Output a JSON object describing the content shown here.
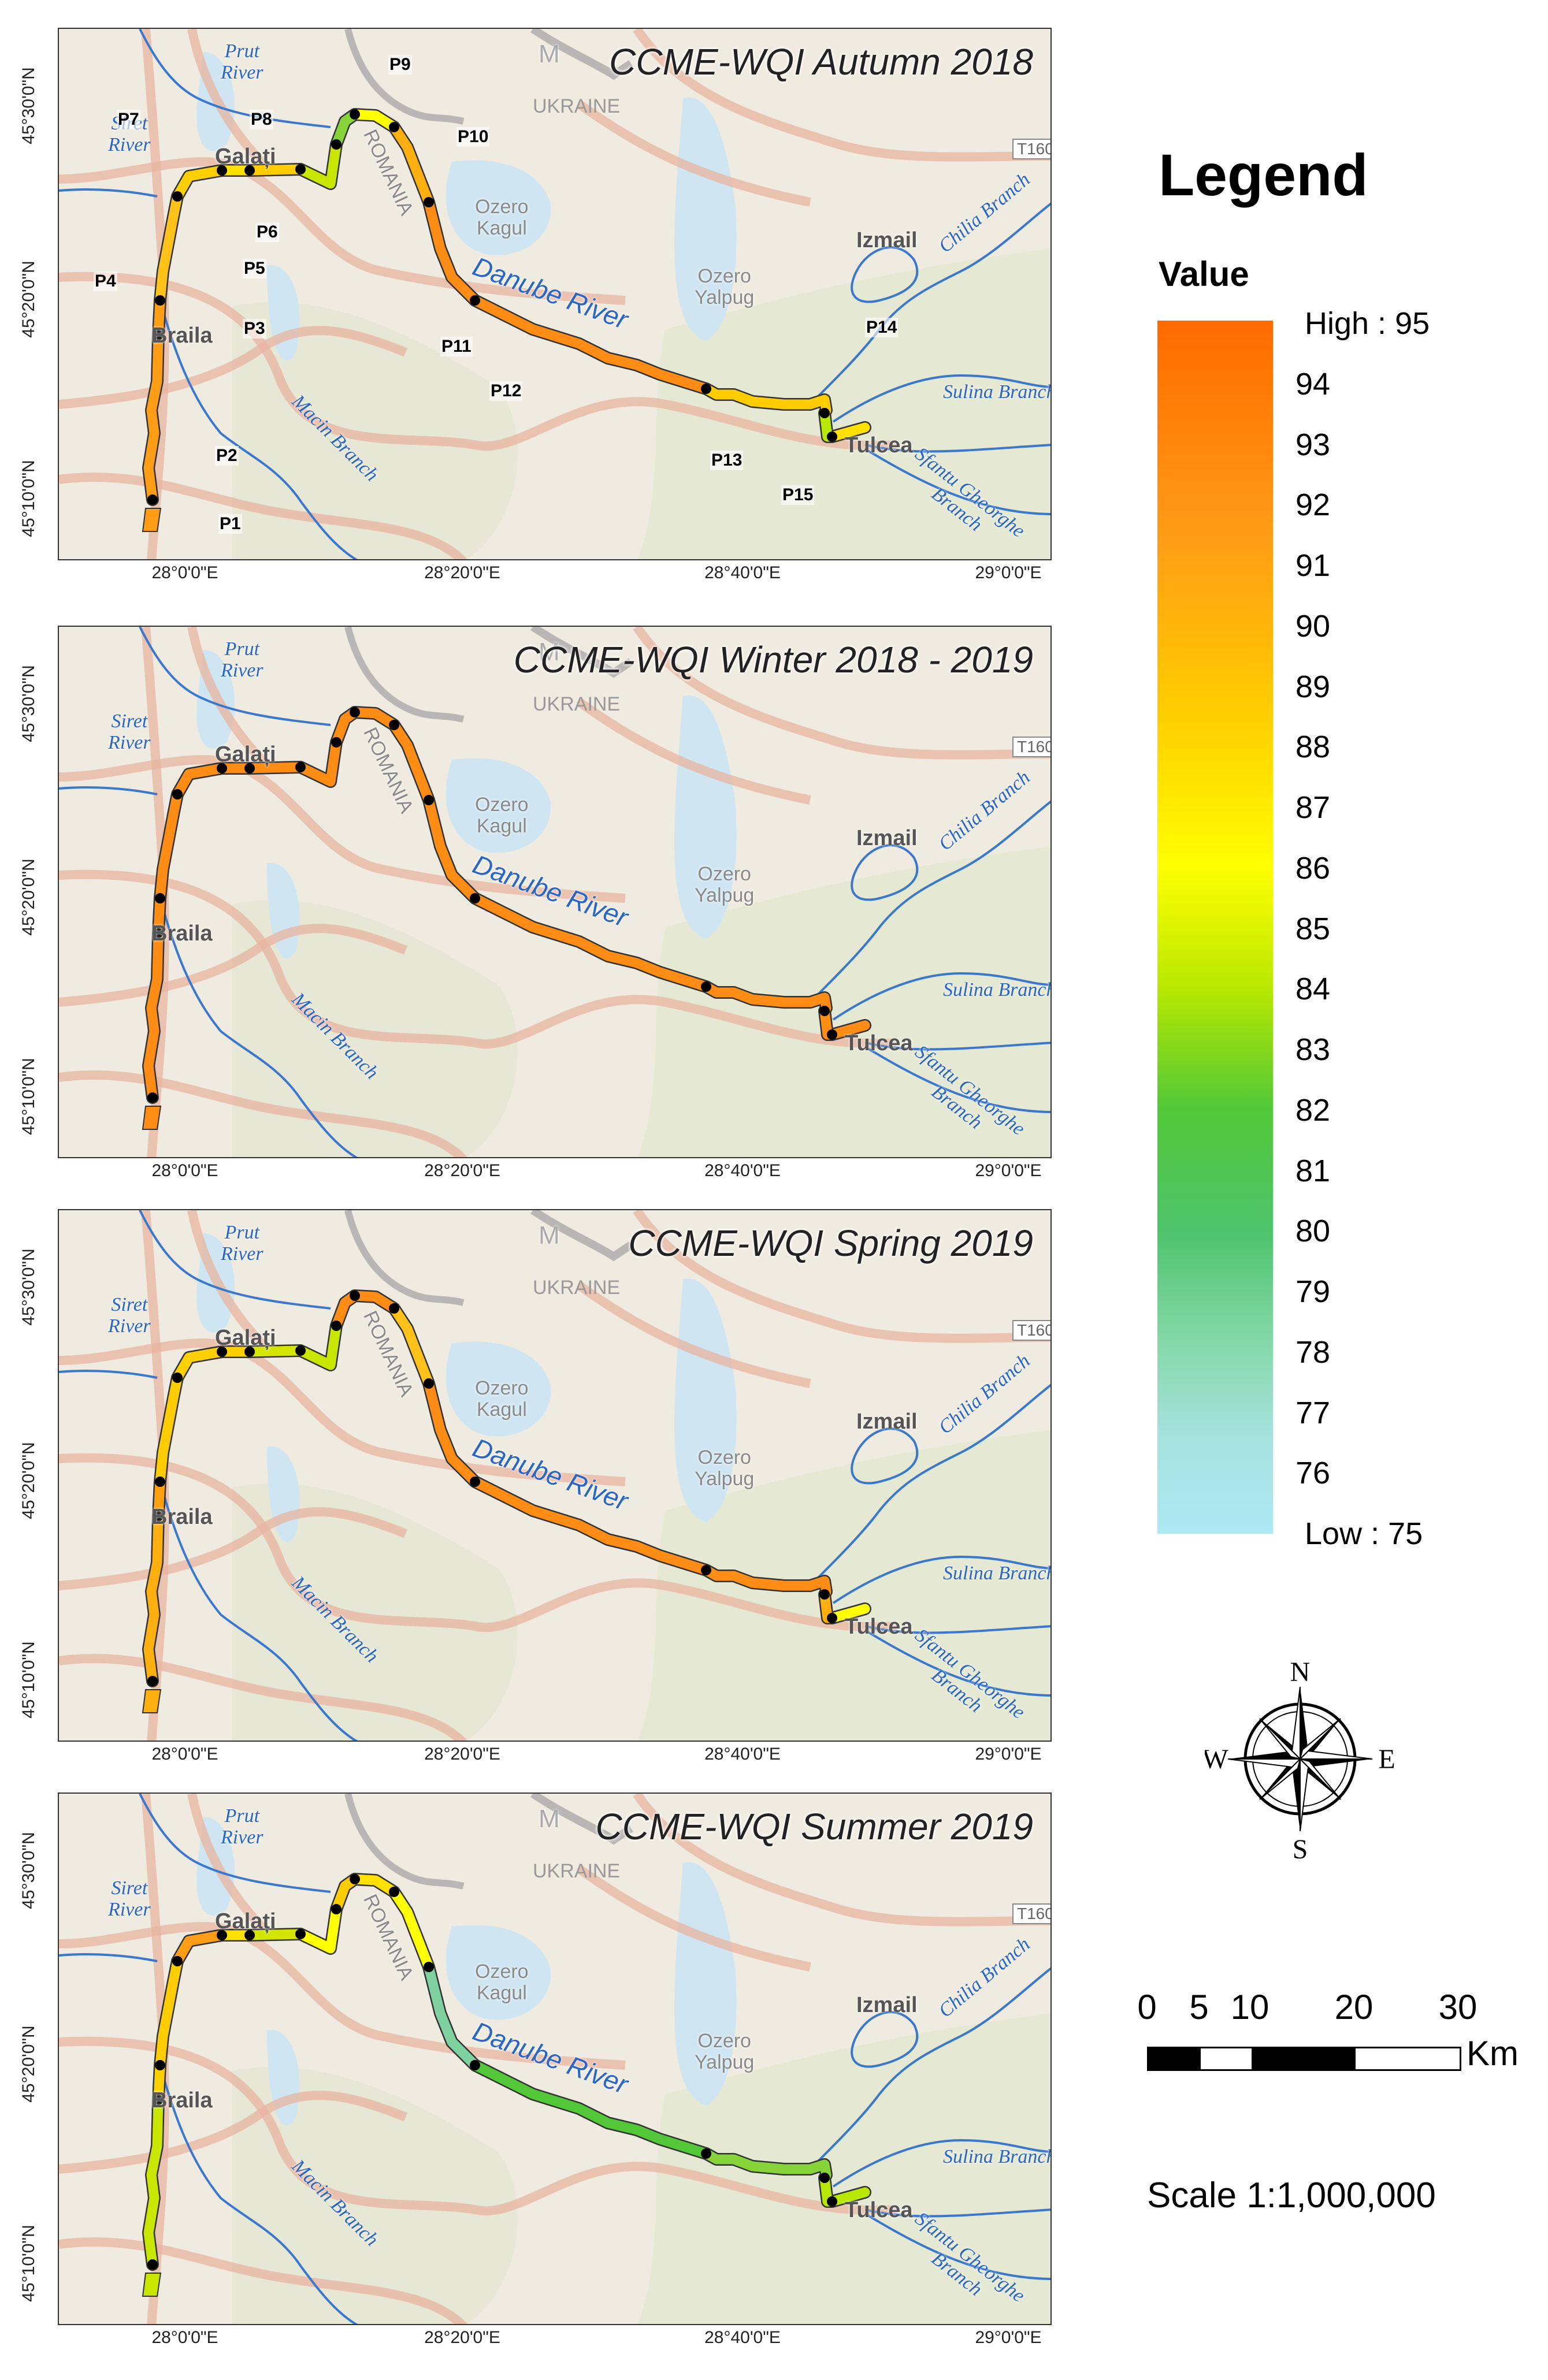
{
  "panels": [
    {
      "title": "CCME-WQI Autumn 2018",
      "colors": [
        "#ff9d16",
        "#ff9d16",
        "#ffc21a",
        "#ffd000",
        "#ffe000",
        "#ffcc00",
        "#c8e600",
        "#86d33a",
        "#ffff00",
        "#ffb010",
        "#ff8c14",
        "#ff8c14",
        "#ffcc00",
        "#b9e800",
        "#ffe000"
      ],
      "show_points": true
    },
    {
      "title": "CCME-WQI Winter 2018 - 2019",
      "colors": [
        "#ff8c14",
        "#ff8c14",
        "#ff8c14",
        "#ff8c14",
        "#ff8c14",
        "#ff8c14",
        "#ff8c14",
        "#ff8c14",
        "#ff8c14",
        "#ff8c14",
        "#ff8c14",
        "#ff8c14",
        "#ff8c14",
        "#ff8c14",
        "#ff8c14"
      ],
      "show_points": false
    },
    {
      "title": "CCME-WQI Spring 2019",
      "colors": [
        "#ffb010",
        "#ffa010",
        "#ffcc00",
        "#ffd000",
        "#ffd000",
        "#d4e600",
        "#c8e600",
        "#ff8c14",
        "#ff8c14",
        "#ffc21a",
        "#ff8c14",
        "#ff8c14",
        "#ff8c14",
        "#ffb010",
        "#ffff00"
      ],
      "show_points": false
    },
    {
      "title": "CCME-WQI Summer 2019",
      "colors": [
        "#c8e600",
        "#ffd000",
        "#ffcc00",
        "#ff9d16",
        "#ffe000",
        "#d4e600",
        "#ffff00",
        "#ffcc00",
        "#ffe000",
        "#ffff00",
        "#7fd1a0",
        "#52c838",
        "#86d33a",
        "#b9e800",
        "#b9e800"
      ],
      "show_points": false
    }
  ],
  "sampling_points": [
    "P1",
    "P2",
    "P3",
    "P4",
    "P5",
    "P6",
    "P7",
    "P8",
    "P9",
    "P10",
    "P11",
    "P12",
    "P13",
    "P14",
    "P15"
  ],
  "y_axis_labels": [
    "45°30'0\"N",
    "45°20'0\"N",
    "45°10'0\"N"
  ],
  "x_axis_labels": [
    "28°0'0\"E",
    "28°20'0\"E",
    "28°40'0\"E",
    "29°0'0\"E"
  ],
  "map_labels": {
    "prut": "Prut\nRiver",
    "siret": "Siret\nRiver",
    "galati": "Galați",
    "braila": "Braila",
    "macin": "Macin Branch",
    "romania": "ROMANIA",
    "ukraine": "UKRAINE",
    "m": "M",
    "kagul": "Ozero\nKagul",
    "yalpug": "Ozero\nYalpug",
    "danube": "Danube River",
    "izmail": "Izmail",
    "chilia": "Chilia Branch",
    "sulina": "Sulina Branch",
    "sfantu": "Sfantu Gheorghe\nBranch",
    "tulcea": "Tulcea",
    "road": "T160"
  },
  "legend": {
    "title": "Legend",
    "value_label": "Value",
    "high": "High : 95",
    "low": "Low : 75",
    "ticks": [
      "94",
      "93",
      "92",
      "91",
      "90",
      "89",
      "88",
      "87",
      "86",
      "85",
      "84",
      "83",
      "82",
      "81",
      "80",
      "79",
      "78",
      "77",
      "76"
    ],
    "range": [
      75,
      95
    ]
  },
  "compass": {
    "n": "N",
    "s": "S",
    "e": "E",
    "w": "W"
  },
  "scale": {
    "numbers": [
      "0",
      "5",
      "10",
      "20",
      "30"
    ],
    "unit": "Km",
    "text": "Scale 1:1,000,000"
  }
}
